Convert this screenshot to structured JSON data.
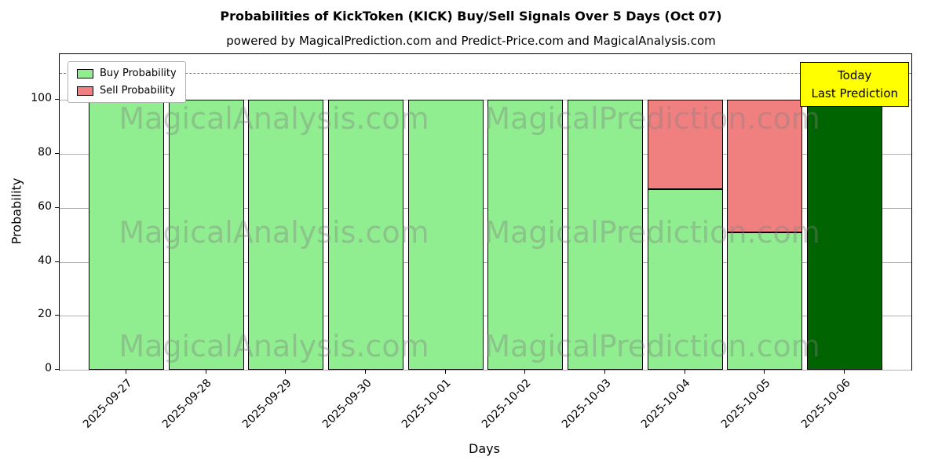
{
  "chart_data": {
    "type": "bar",
    "stacked": true,
    "title": "Probabilities of KickToken (KICK) Buy/Sell Signals Over 5 Days (Oct 07)",
    "subtitle": "powered by MagicalPrediction.com and Predict-Price.com and MagicalAnalysis.com",
    "xlabel": "Days",
    "ylabel": "Probability",
    "categories": [
      "2025-09-27",
      "2025-09-28",
      "2025-09-29",
      "2025-09-30",
      "2025-10-01",
      "2025-10-02",
      "2025-10-03",
      "2025-10-04",
      "2025-10-05",
      "2025-10-06"
    ],
    "series": [
      {
        "name": "Buy Probability",
        "color": "#90ee90",
        "values": [
          100,
          100,
          100,
          100,
          100,
          100,
          100,
          67,
          51,
          100
        ]
      },
      {
        "name": "Sell Probability",
        "color": "#f08080",
        "values": [
          0,
          0,
          0,
          0,
          0,
          0,
          0,
          33,
          49,
          0
        ]
      }
    ],
    "today_bar": {
      "index": 9,
      "category": "2025-10-06",
      "color": "#006400",
      "value": 100
    },
    "ylim": [
      0,
      117
    ],
    "yticks": [
      0,
      20,
      40,
      60,
      80,
      100
    ],
    "dashed_line_y": 110,
    "grid": "horizontal",
    "legend_position": "upper-left",
    "bar_edge_color": "#000000"
  },
  "annotation": {
    "line1": "Today",
    "line2": "Last Prediction",
    "bg_color": "#ffff00",
    "border_color": "#000000"
  },
  "watermarks": [
    "MagicalAnalysis.com",
    "MagicalPrediction.com"
  ]
}
